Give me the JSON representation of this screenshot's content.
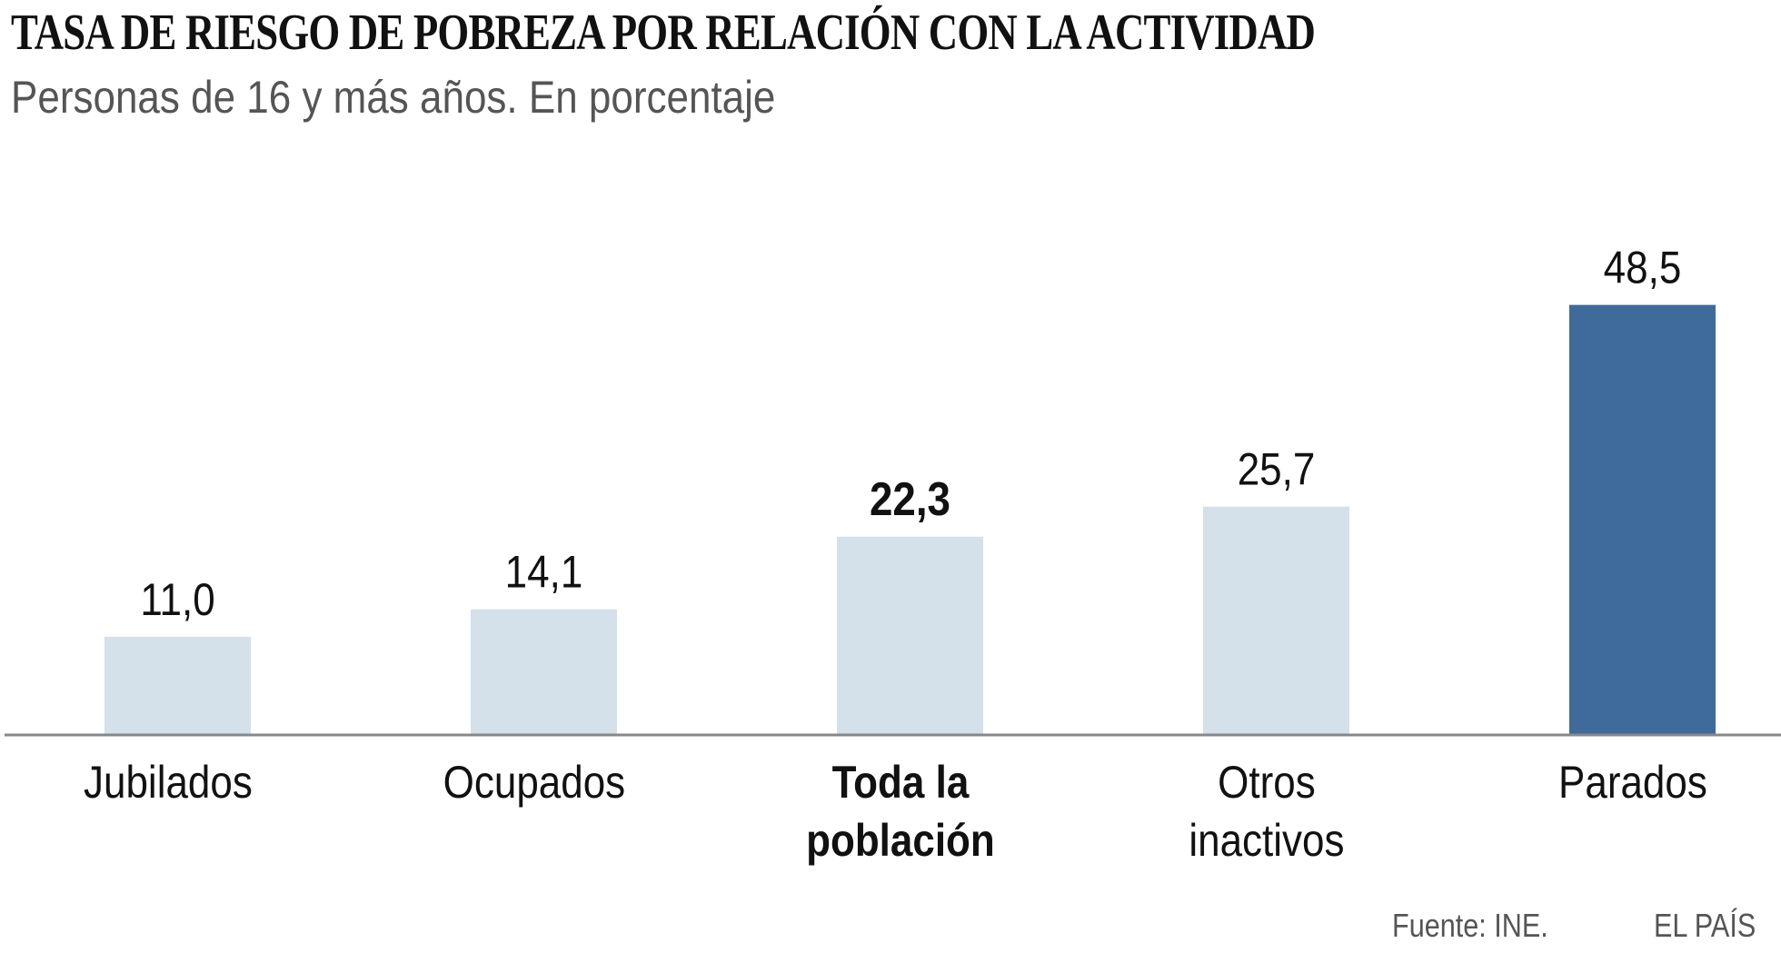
{
  "chart_data": {
    "type": "bar",
    "title": "TASA DE RIESGO DE POBREZA POR RELACIÓN CON LA ACTIVIDAD",
    "subtitle": "Personas de 16 y más años. En porcentaje",
    "categories": [
      [
        "Jubilados"
      ],
      [
        "Ocupados"
      ],
      [
        "Toda la",
        "población"
      ],
      [
        "Otros",
        "inactivos"
      ],
      [
        "Parados"
      ]
    ],
    "values": [
      11.0,
      14.1,
      22.3,
      25.7,
      48.5
    ],
    "value_labels": [
      "11,0",
      "14,1",
      "22,3",
      "25,7",
      "48,5"
    ],
    "highlight_bold": [
      false,
      false,
      true,
      false,
      false
    ],
    "bar_colors": [
      "#d4e0ea",
      "#d4e0ea",
      "#d4e0ea",
      "#d4e0ea",
      "#3f6b9b"
    ],
    "xlabel": "",
    "ylabel": "",
    "ylim": [
      0,
      50
    ],
    "grid": false,
    "source": "Fuente: INE.",
    "brand": "EL PAÍS"
  }
}
